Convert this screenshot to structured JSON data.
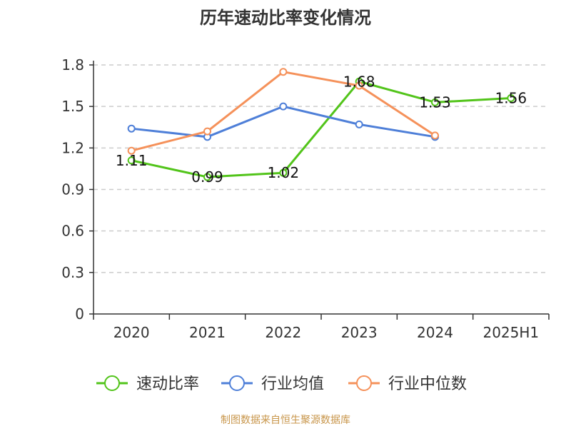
{
  "chart_data": {
    "type": "line",
    "title": "历年速动比率变化情况",
    "categories": [
      "2020",
      "2021",
      "2022",
      "2023",
      "2024",
      "2025H1"
    ],
    "y_ticks": [
      "0",
      "0.3",
      "0.6",
      "0.9",
      "1.2",
      "1.5",
      "1.8"
    ],
    "ylim": [
      0,
      1.8
    ],
    "grid": true,
    "legend_position": "bottom",
    "series": [
      {
        "name": "速动比率",
        "color": "#52c41a",
        "values": [
          1.11,
          0.99,
          1.02,
          1.68,
          1.53,
          1.56
        ],
        "labels": [
          "1.11",
          "0.99",
          "1.02",
          "1.68",
          "1.53",
          "1.56"
        ]
      },
      {
        "name": "行业均值",
        "color": "#4e7fd8",
        "values": [
          1.34,
          1.28,
          1.5,
          1.37,
          1.28,
          null
        ]
      },
      {
        "name": "行业中位数",
        "color": "#f5915a",
        "values": [
          1.18,
          1.32,
          1.75,
          1.65,
          1.29,
          null
        ]
      }
    ]
  },
  "source_text": "制图数据来自恒生聚源数据库",
  "source_color": "#c8964b"
}
